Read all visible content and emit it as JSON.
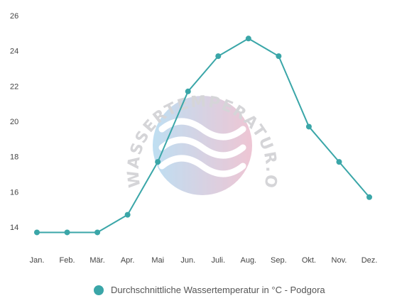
{
  "chart_data": {
    "type": "line",
    "categories": [
      "Jan.",
      "Feb.",
      "Mär.",
      "Apr.",
      "Mai",
      "Jun.",
      "Juli.",
      "Aug.",
      "Sep.",
      "Okt.",
      "Nov.",
      "Dez."
    ],
    "series": [
      {
        "name": "Durchschnittliche Wassertemperatur in °C - Podgora",
        "values": [
          13.7,
          13.7,
          13.7,
          14.7,
          17.7,
          21.7,
          23.7,
          24.7,
          23.7,
          19.7,
          17.7,
          15.7
        ],
        "color": "#3aa6a8"
      }
    ],
    "y_ticks": [
      "14",
      "16",
      "18",
      "20",
      "22",
      "24",
      "26"
    ],
    "ylim": [
      13,
      26
    ],
    "grid": false,
    "legend_position": "bottom-center"
  },
  "watermark": {
    "text": "WASSERTEMPERATUR.ORG",
    "colors": [
      "#a9d4ee",
      "#e9b3c6"
    ]
  }
}
